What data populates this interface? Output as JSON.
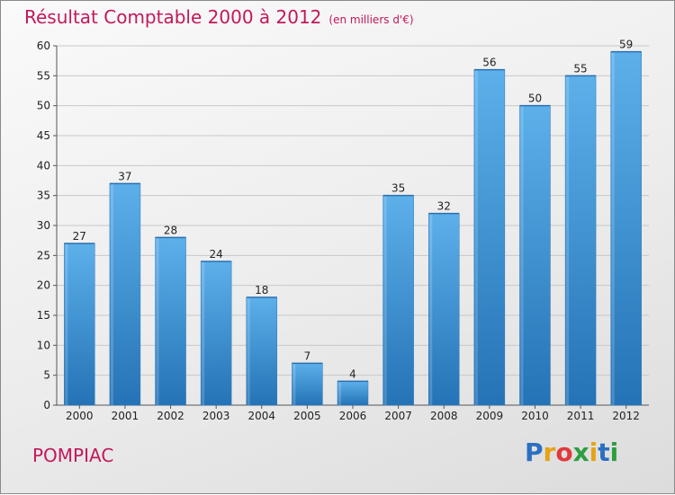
{
  "chart_data": {
    "type": "bar",
    "title": "Résultat Comptable 2000 à 2012",
    "subtitle": "(en milliers d'€)",
    "categories": [
      "2000",
      "2001",
      "2002",
      "2003",
      "2004",
      "2005",
      "2006",
      "2007",
      "2008",
      "2009",
      "2010",
      "2011",
      "2012"
    ],
    "values": [
      27,
      37,
      28,
      24,
      18,
      7,
      4,
      35,
      32,
      56,
      50,
      55,
      59
    ],
    "ylim": [
      0,
      60
    ],
    "yticks": [
      0,
      5,
      10,
      15,
      20,
      25,
      30,
      35,
      40,
      45,
      50,
      55,
      60
    ],
    "grid": true,
    "bar_color": "#3a8fd6"
  },
  "footer": {
    "commune": "POMPIAC",
    "logo_letters": [
      {
        "ch": "P",
        "color": "#2b6fc1"
      },
      {
        "ch": "r",
        "color": "#e6a317"
      },
      {
        "ch": "o",
        "color": "#e03a3a"
      },
      {
        "ch": "x",
        "color": "#2e9e3f"
      },
      {
        "ch": "i",
        "color": "#e6a317"
      },
      {
        "ch": "t",
        "color": "#2b6fc1"
      },
      {
        "ch": "i",
        "color": "#2e9e3f"
      }
    ]
  }
}
